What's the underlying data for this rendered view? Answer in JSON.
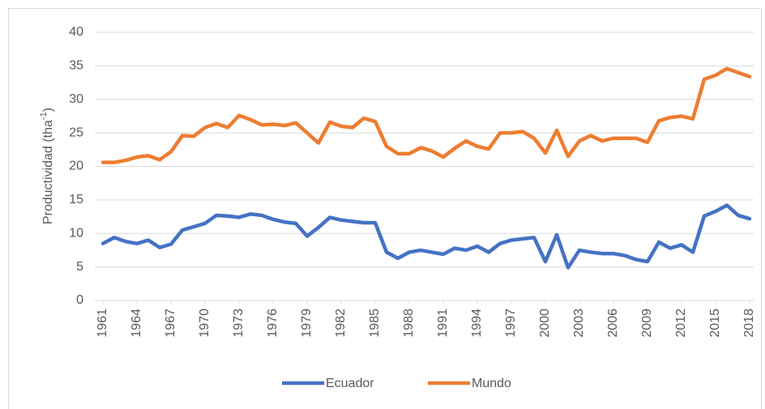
{
  "chart_data": {
    "type": "line",
    "ylabel": [
      "Productividad (tha",
      "-1",
      ")"
    ],
    "x": [
      1961,
      1962,
      1963,
      1964,
      1965,
      1966,
      1967,
      1968,
      1969,
      1970,
      1971,
      1972,
      1973,
      1974,
      1975,
      1976,
      1977,
      1978,
      1979,
      1980,
      1981,
      1982,
      1983,
      1984,
      1985,
      1986,
      1987,
      1988,
      1989,
      1990,
      1991,
      1992,
      1993,
      1994,
      1995,
      1996,
      1997,
      1998,
      1999,
      2000,
      2001,
      2002,
      2003,
      2004,
      2005,
      2006,
      2007,
      2008,
      2009,
      2010,
      2011,
      2012,
      2013,
      2014,
      2015,
      2016,
      2017,
      2018
    ],
    "xlim": [
      1961,
      2018
    ],
    "xticks": [
      1961,
      1964,
      1967,
      1970,
      1973,
      1976,
      1979,
      1982,
      1985,
      1988,
      1991,
      1994,
      1997,
      2000,
      2003,
      2006,
      2009,
      2012,
      2015,
      2018
    ],
    "ylim": [
      0,
      40
    ],
    "yticks": [
      0,
      5,
      10,
      15,
      20,
      25,
      30,
      35,
      40
    ],
    "grid": true,
    "legend": "bottom",
    "series": [
      {
        "name": "Ecuador",
        "color": "#4472c4",
        "values": [
          8.5,
          9.4,
          8.8,
          8.5,
          9.0,
          7.9,
          8.4,
          10.5,
          11.0,
          11.5,
          12.7,
          12.6,
          12.4,
          12.9,
          12.7,
          12.1,
          11.7,
          11.5,
          9.6,
          10.9,
          12.4,
          12.0,
          11.8,
          11.6,
          11.6,
          7.2,
          6.3,
          7.2,
          7.5,
          7.2,
          6.9,
          7.8,
          7.5,
          8.1,
          7.2,
          8.5,
          9.0,
          9.2,
          9.4,
          5.8,
          9.8,
          4.9,
          7.5,
          7.2,
          7.0,
          7.0,
          6.7,
          6.1,
          5.8,
          8.7,
          7.8,
          8.3,
          7.2,
          12.6,
          13.3,
          14.2,
          12.7,
          12.2
        ]
      },
      {
        "name": "Mundo",
        "color": "#ed7d31",
        "values": [
          20.6,
          20.6,
          20.9,
          21.4,
          21.6,
          21.0,
          22.2,
          24.6,
          24.5,
          25.8,
          26.4,
          25.8,
          27.6,
          27.0,
          26.2,
          26.3,
          26.1,
          26.5,
          25.0,
          23.5,
          26.6,
          26.0,
          25.8,
          27.2,
          26.7,
          23.0,
          21.9,
          21.9,
          22.8,
          22.3,
          21.4,
          22.7,
          23.8,
          23.0,
          22.6,
          25.0,
          25.0,
          25.2,
          24.2,
          22.0,
          25.4,
          21.5,
          23.8,
          24.6,
          23.8,
          24.2,
          24.2,
          24.2,
          23.6,
          26.8,
          27.3,
          27.5,
          27.1,
          33.0,
          33.6,
          34.6,
          34.0,
          33.4
        ]
      }
    ]
  }
}
